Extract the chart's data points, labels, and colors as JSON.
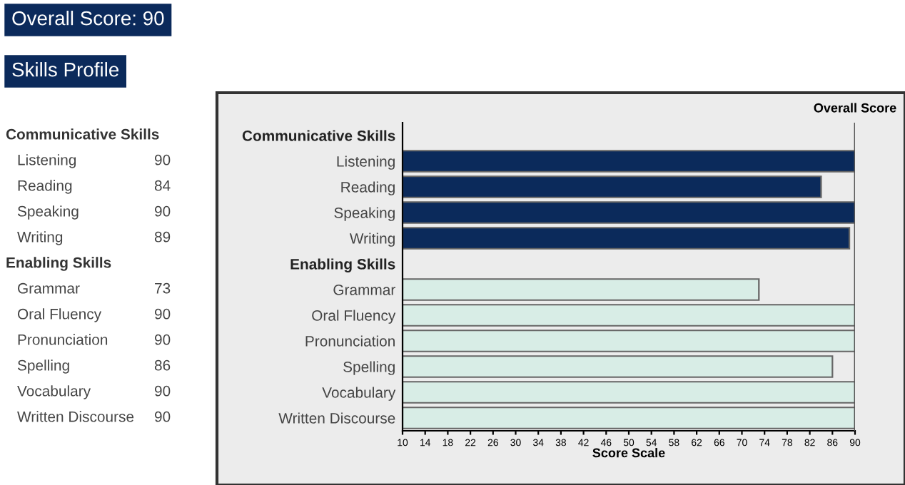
{
  "chart_data": {
    "type": "bar",
    "orientation": "horizontal",
    "title": "Overall Score: 90",
    "subtitle": "Skills Profile",
    "xlabel": "Score Scale",
    "categories": [
      "Communicative Skills",
      "Listening",
      "Reading",
      "Speaking",
      "Writing",
      "Enabling Skills",
      "Grammar",
      "Oral Fluency",
      "Pronunciation",
      "Spelling",
      "Vocabulary",
      "Written Discourse"
    ],
    "values": [
      null,
      90,
      84,
      90,
      89,
      null,
      73,
      90,
      90,
      86,
      90,
      90
    ],
    "value_labels": [
      null,
      "90",
      "84",
      "90",
      "89",
      null,
      "73",
      "90",
      "90",
      "86",
      "90",
      "90"
    ],
    "colors": [
      null,
      "#0b2a5b",
      "#0b2a5b",
      "#0b2a5b",
      "#0b2a5b",
      null,
      "#d8ede6",
      "#d8ede6",
      "#d8ede6",
      "#d8ede6",
      "#d8ede6",
      "#d8ede6"
    ],
    "xlim": [
      10,
      90
    ],
    "xticks": [
      10,
      14,
      18,
      22,
      26,
      30,
      34,
      38,
      42,
      46,
      50,
      54,
      58,
      62,
      66,
      70,
      74,
      78,
      82,
      86,
      90
    ],
    "ref_lines": [
      {
        "axis": "x",
        "value": 90,
        "label": "Overall Score",
        "color": "#555555"
      }
    ],
    "grid": false
  }
}
